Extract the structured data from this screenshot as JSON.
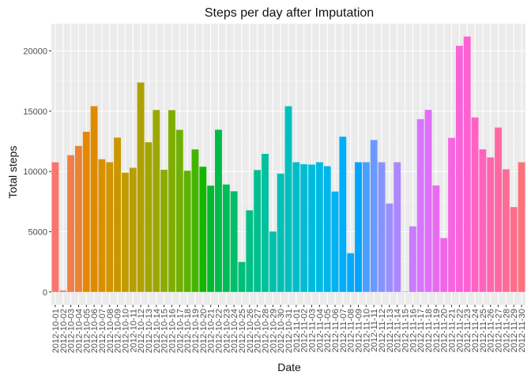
{
  "chart_data": {
    "type": "bar",
    "title": "Steps per day after Imputation",
    "xlabel": "Date",
    "ylabel": "Total steps",
    "ylim": [
      -1060,
      22260
    ],
    "yticks": [
      0,
      5000,
      10000,
      15000,
      20000
    ],
    "ytick_labels": [
      "0",
      "5000",
      "10000",
      "15000",
      "20000"
    ],
    "grid": true,
    "legend": "none",
    "color_scale": "hue",
    "categories": [
      "2012-10-01",
      "2012-10-02",
      "2012-10-03",
      "2012-10-04",
      "2012-10-05",
      "2012-10-06",
      "2012-10-07",
      "2012-10-08",
      "2012-10-09",
      "2012-10-10",
      "2012-10-11",
      "2012-10-12",
      "2012-10-13",
      "2012-10-14",
      "2012-10-15",
      "2012-10-16",
      "2012-10-17",
      "2012-10-18",
      "2012-10-19",
      "2012-10-20",
      "2012-10-21",
      "2012-10-22",
      "2012-10-23",
      "2012-10-24",
      "2012-10-25",
      "2012-10-26",
      "2012-10-27",
      "2012-10-28",
      "2012-10-29",
      "2012-10-30",
      "2012-10-31",
      "2012-11-01",
      "2012-11-02",
      "2012-11-03",
      "2012-11-04",
      "2012-11-05",
      "2012-11-06",
      "2012-11-07",
      "2012-11-08",
      "2012-11-09",
      "2012-11-10",
      "2012-11-11",
      "2012-11-12",
      "2012-11-13",
      "2012-11-14",
      "2012-11-15",
      "2012-11-16",
      "2012-11-17",
      "2012-11-18",
      "2012-11-19",
      "2012-11-20",
      "2012-11-21",
      "2012-11-22",
      "2012-11-23",
      "2012-11-24",
      "2012-11-25",
      "2012-11-26",
      "2012-11-27",
      "2012-11-28",
      "2012-11-29",
      "2012-11-30"
    ],
    "xtick_labels": [
      "2012-10-01",
      "2012-10-02",
      "2012-10-03",
      "2012-10-04",
      "2012-10-05",
      "2012-10-06",
      "2012-10-07",
      "2012-10-08",
      "2012-10-09",
      "2012-10-10",
      "2012-10-11",
      "2012-10-12",
      "2012-10-13",
      "2012-10-14",
      "2012-10-15",
      "2012-10-16",
      "2012-10-17",
      "2012-10-18",
      "2012-10-19",
      "2012-10-20",
      "2012-10-21",
      "2012-10-22",
      "2012-10-23",
      "2012-10-24",
      "2012-10-25",
      "2012-10-26",
      "2012-10-27",
      "2012-10-28",
      "2012-10-29",
      "2012-10-30",
      "2012-10-31",
      "2012-11-01",
      "2012-11-02",
      "2012-11-03",
      "2012-11-04",
      "2012-11-05",
      "2012-11-06",
      "2012-11-07",
      "2012-11-08",
      "2012-11-09",
      "2012-11-10",
      "2012-11-11",
      "2012-11-12",
      "2012-11-13",
      "2012-11-14",
      "2012-11-15",
      "2012-11-16",
      "2012-11-17",
      "2012-11-18",
      "2012-11-19",
      "2012-11-20",
      "2012-11-21",
      "2012-11-22",
      "2012-11-23",
      "2012-11-24",
      "2012-11-25",
      "2012-11-26",
      "2012-11-27",
      "2012-11-28",
      "2012-11-29",
      "2012-11-30"
    ],
    "values": [
      10766,
      126,
      11352,
      12116,
      13294,
      15420,
      11015,
      10766,
      12811,
      9900,
      10304,
      17382,
      12426,
      15098,
      10139,
      15084,
      13452,
      10056,
      11829,
      10395,
      8821,
      13460,
      8918,
      8355,
      2492,
      6778,
      10119,
      11458,
      5018,
      9819,
      15414,
      10766,
      10600,
      10571,
      10766,
      10439,
      8334,
      12883,
      3219,
      10766,
      10766,
      12608,
      10765,
      7336,
      10766,
      41,
      5441,
      14339,
      15110,
      8841,
      4472,
      12787,
      20427,
      21194,
      14478,
      11834,
      11162,
      13646,
      10183,
      7047,
      10766
    ]
  }
}
